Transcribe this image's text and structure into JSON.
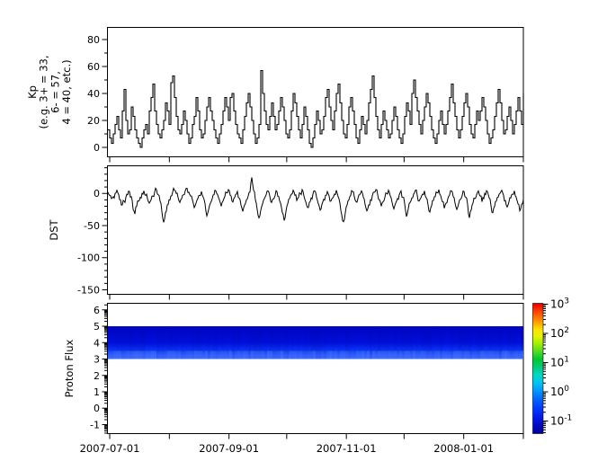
{
  "figure": {
    "background": "#ffffff",
    "line_color": "#000000"
  },
  "x_axis": {
    "tick_dates": [
      "2007-07-01",
      "2007-08-01",
      "2007-09-01",
      "2007-10-01",
      "2007-11-01",
      "2007-12-01",
      "2008-01-01",
      "2008-02-01"
    ],
    "tick_labels": [
      "2007-07-01",
      "2007-09-01",
      "2007-11-01",
      "2008-01-01"
    ]
  },
  "chart_data": [
    {
      "id": "kp",
      "type": "line",
      "line_style": "step",
      "ylabel_lines": [
        "Kp",
        "(e.g. 3+ = 33,",
        "6- = 57,",
        "4 = 40, etc.)"
      ],
      "ylim": [
        -7,
        89
      ],
      "yticks": [
        0,
        20,
        40,
        60,
        80
      ],
      "y_minor_step": 10,
      "x_start": "2007-07-01",
      "x_end": "2008-02-01",
      "values": [
        13,
        7,
        3,
        10,
        17,
        23,
        13,
        7,
        27,
        43,
        20,
        10,
        13,
        30,
        23,
        13,
        7,
        3,
        0,
        7,
        13,
        17,
        10,
        27,
        37,
        47,
        27,
        17,
        10,
        7,
        13,
        20,
        33,
        27,
        17,
        48,
        53,
        37,
        23,
        13,
        10,
        17,
        27,
        20,
        10,
        3,
        7,
        17,
        23,
        37,
        27,
        13,
        7,
        10,
        20,
        30,
        37,
        27,
        20,
        13,
        7,
        3,
        10,
        17,
        27,
        37,
        30,
        20,
        37,
        40,
        27,
        17,
        10,
        7,
        3,
        13,
        23,
        33,
        40,
        30,
        20,
        10,
        3,
        7,
        17,
        57,
        40,
        27,
        17,
        13,
        23,
        33,
        23,
        13,
        17,
        27,
        37,
        30,
        20,
        10,
        7,
        13,
        27,
        40,
        33,
        23,
        13,
        7,
        17,
        30,
        23,
        13,
        3,
        0,
        7,
        17,
        27,
        20,
        10,
        13,
        23,
        37,
        43,
        30,
        20,
        13,
        27,
        40,
        47,
        33,
        20,
        10,
        7,
        17,
        30,
        37,
        27,
        17,
        7,
        3,
        13,
        23,
        17,
        10,
        20,
        33,
        43,
        53,
        37,
        23,
        13,
        7,
        17,
        27,
        20,
        13,
        7,
        10,
        20,
        30,
        23,
        13,
        7,
        3,
        10,
        23,
        33,
        27,
        17,
        40,
        50,
        37,
        27,
        17,
        10,
        20,
        30,
        40,
        33,
        23,
        13,
        7,
        3,
        10,
        20,
        27,
        17,
        10,
        17,
        27,
        37,
        47,
        33,
        23,
        13,
        7,
        13,
        23,
        33,
        40,
        30,
        17,
        10,
        7,
        17,
        27,
        20,
        27,
        37,
        30,
        20,
        10,
        3,
        7,
        13,
        23,
        33,
        43,
        33,
        20,
        10,
        13,
        23,
        30,
        20,
        10,
        17,
        27,
        37,
        27,
        17,
        40
      ]
    },
    {
      "id": "dst",
      "type": "line",
      "line_style": "linear",
      "ylabel": "DST",
      "ylim": [
        -157,
        43
      ],
      "yticks": [
        0,
        -50,
        -100,
        -150
      ],
      "y_minor_step": 10,
      "x_start": "2007-07-01",
      "x_end": "2008-02-01",
      "values": [
        2,
        -3,
        -8,
        -5,
        0,
        5,
        -2,
        -10,
        -18,
        -12,
        -6,
        -2,
        3,
        -5,
        -25,
        -32,
        -20,
        -12,
        -6,
        0,
        4,
        -3,
        -8,
        -15,
        -10,
        -4,
        2,
        6,
        -2,
        -12,
        -28,
        -45,
        -30,
        -18,
        -10,
        -4,
        2,
        5,
        0,
        -6,
        -14,
        -8,
        -2,
        4,
        8,
        2,
        -4,
        -10,
        -22,
        -15,
        -8,
        -3,
        3,
        -6,
        -16,
        -35,
        -25,
        -15,
        -8,
        -2,
        4,
        -2,
        -10,
        -20,
        -12,
        -5,
        1,
        6,
        -3,
        -12,
        -8,
        -2,
        3,
        -7,
        -18,
        -28,
        -18,
        -10,
        -4,
        2,
        25,
        5,
        -10,
        -25,
        -38,
        -26,
        -16,
        -8,
        -2,
        4,
        -4,
        -14,
        -9,
        -3,
        3,
        -5,
        -15,
        -30,
        -42,
        -28,
        -16,
        -8,
        -1,
        5,
        -3,
        -11,
        -6,
        0,
        6,
        -4,
        -13,
        -22,
        -14,
        -7,
        -1,
        4,
        -6,
        -16,
        -26,
        -17,
        -9,
        -3,
        3,
        -4,
        -12,
        -7,
        -1,
        5,
        -5,
        -15,
        -33,
        -44,
        -30,
        -18,
        -10,
        -3,
        3,
        -5,
        -13,
        -8,
        -2,
        4,
        -6,
        -17,
        -27,
        -18,
        -10,
        -4,
        2,
        6,
        -2,
        -10,
        -20,
        -13,
        -6,
        0,
        5,
        -4,
        -14,
        -24,
        -15,
        -8,
        -2,
        4,
        -6,
        -16,
        -36,
        -24,
        -14,
        -7,
        -1,
        5,
        -3,
        -12,
        -7,
        -1,
        4,
        -7,
        -18,
        -29,
        -19,
        -11,
        -5,
        1,
        6,
        -3,
        -13,
        -23,
        -15,
        -8,
        -2,
        4,
        -5,
        -15,
        -25,
        -16,
        -9,
        -3,
        3,
        -6,
        -17,
        -38,
        -26,
        -15,
        -8,
        -2,
        4,
        -4,
        -13,
        -8,
        -2,
        3,
        -7,
        -19,
        -30,
        -20,
        -12,
        -6,
        0,
        5,
        -3,
        -11,
        -21,
        -13,
        -7,
        -1,
        4,
        -6,
        -16,
        -27,
        -17,
        -10
      ]
    },
    {
      "id": "proton_flux",
      "type": "heatmap",
      "ylabel": "Proton Flux",
      "ylim": [
        -1.55,
        6.4
      ],
      "yticks": [
        6,
        5,
        4,
        3,
        2,
        1,
        0,
        -1
      ],
      "minor_tick_style": "log-decade",
      "x_start": "2007-07-01",
      "x_end": "2008-02-01",
      "band": {
        "ymin": 3.0,
        "ymax": 5.0,
        "color_top": "#0004c4",
        "color_mid": "#0010dc",
        "color_bottom": "#3f6eff",
        "flux_level_range": [
          0.05,
          0.5
        ]
      },
      "colorbar": {
        "scale": "log",
        "colormap": "jet",
        "base": "10",
        "exponents": [
          3,
          2,
          1,
          0,
          -1
        ],
        "range_exponents": [
          -1.43,
          3.03
        ]
      }
    }
  ]
}
